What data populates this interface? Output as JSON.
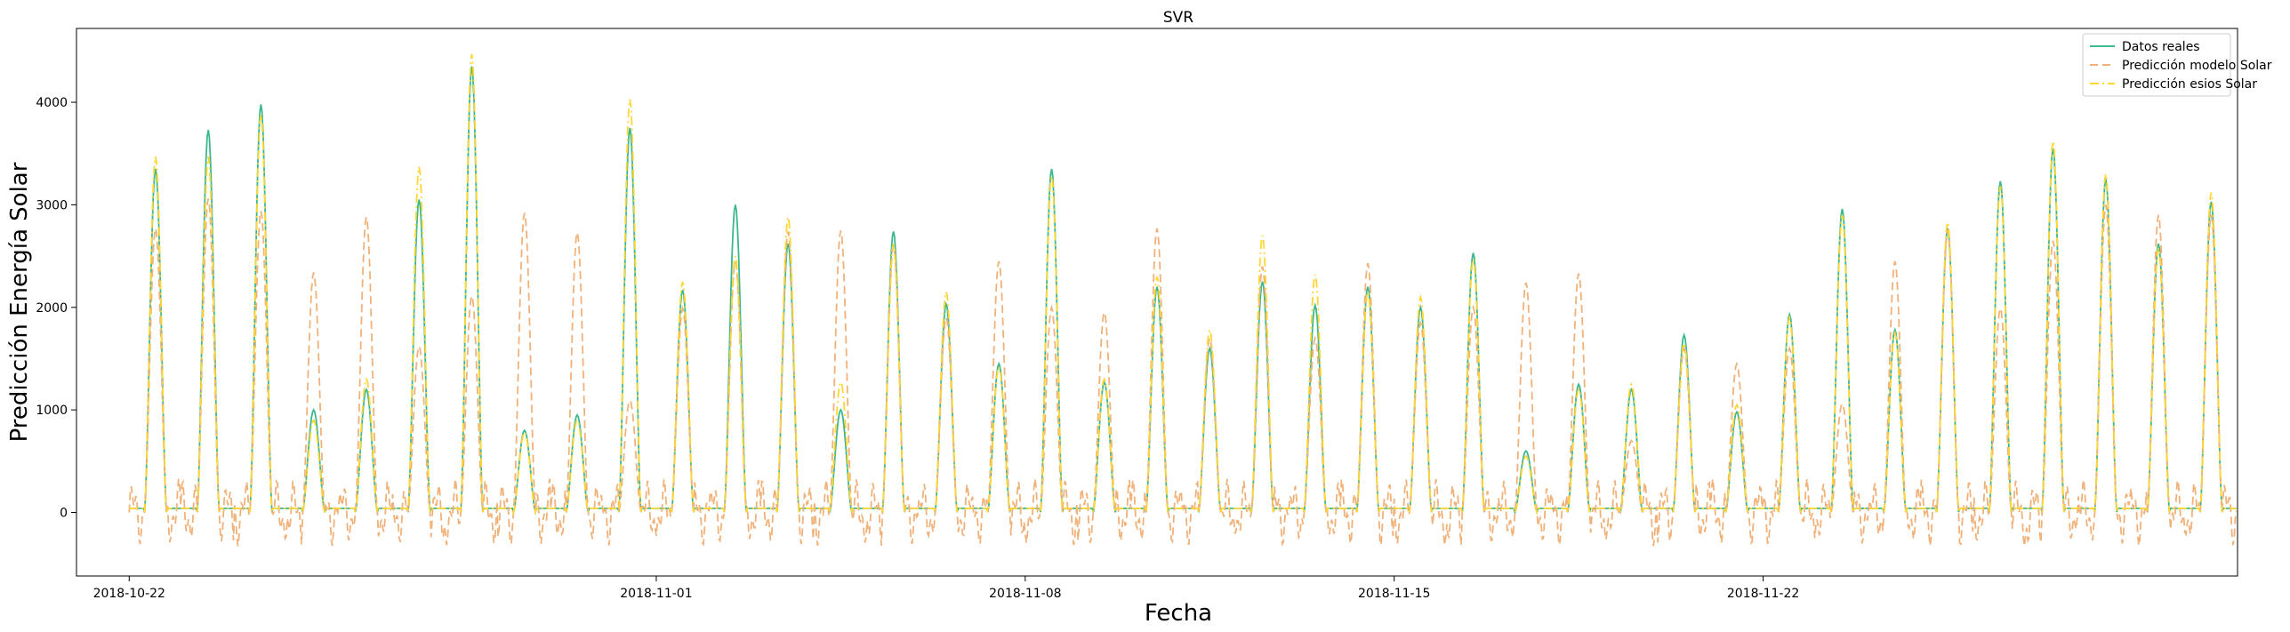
{
  "chart_data": {
    "type": "line",
    "title": "SVR",
    "xlabel": "Fecha",
    "ylabel": "Predicción Energía Solar",
    "x_start": "2018-10-22",
    "x_end": "2018-11-28",
    "xlim": [
      "2018-10-21",
      "2018-12-01"
    ],
    "ylim": [
      -620,
      4720
    ],
    "xticks": [
      "2018-10-22",
      "2018-11-01",
      "2018-11-08",
      "2018-11-15",
      "2018-11-22"
    ],
    "yticks": [
      0,
      1000,
      2000,
      3000,
      4000
    ],
    "grid": false,
    "legend_position": "top-right",
    "series": [
      {
        "name": "Datos reales",
        "color": "#3cb88e",
        "style": "solid",
        "values": [
          3350,
          3730,
          3980,
          1000,
          1200,
          3050,
          4350,
          800,
          950,
          3750,
          2170,
          3000,
          2620,
          1000,
          2740,
          2030,
          1450,
          3350,
          1270,
          2200,
          1600,
          2250,
          2020,
          2200,
          2000,
          2530,
          600,
          1250,
          1200,
          1730,
          980,
          1930,
          2960,
          1780,
          2770,
          3230,
          3550,
          3250,
          2620,
          3030
        ]
      },
      {
        "name": "Predicción modelo Solar",
        "color": "#f0b27a",
        "style": "dashed",
        "values": [
          2770,
          3060,
          2940,
          2340,
          2880,
          1620,
          2110,
          2920,
          2730,
          1090,
          1990,
          2450,
          2740,
          2750,
          2600,
          1900,
          2450,
          2000,
          1950,
          2770,
          1700,
          2400,
          1700,
          2430,
          1850,
          2000,
          2240,
          2330,
          700,
          1600,
          1450,
          1600,
          1060,
          2450,
          2750,
          1990,
          2650,
          3000,
          2900,
          2900
        ]
      },
      {
        "name": "Predicción esios Solar",
        "color": "#ffd633",
        "style": "dashdot",
        "values": [
          3470,
          3470,
          3880,
          900,
          1300,
          3370,
          4470,
          780,
          900,
          4030,
          2250,
          2500,
          2880,
          1270,
          2620,
          2150,
          1420,
          3280,
          1300,
          2300,
          1780,
          2700,
          2320,
          2150,
          2100,
          2470,
          550,
          1200,
          1250,
          1650,
          1050,
          1900,
          2900,
          1750,
          2830,
          3180,
          3620,
          3300,
          2580,
          3120
        ]
      }
    ]
  }
}
